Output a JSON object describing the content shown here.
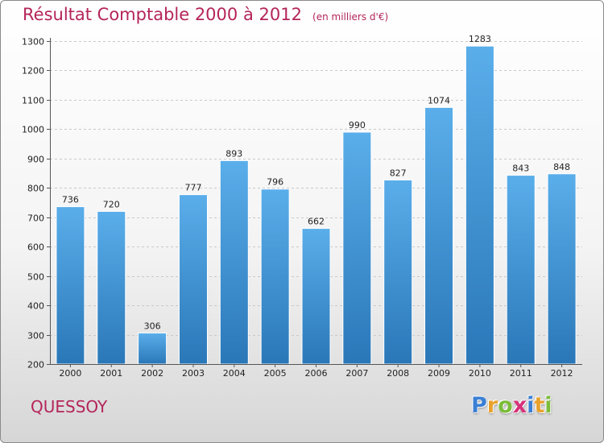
{
  "title": "Résultat Comptable 2000 à 2012",
  "unit": "(en milliers d'€)",
  "town": "QUESSOY",
  "logo": {
    "text": "Proxiti",
    "letters": [
      {
        "ch": "P",
        "color": "#3a7fd4"
      },
      {
        "ch": "r",
        "color": "#e9a12b"
      },
      {
        "ch": "o",
        "color": "#7cbc3a"
      },
      {
        "ch": "x",
        "color": "#d6317a"
      },
      {
        "ch": "i",
        "color": "#3a7fd4"
      },
      {
        "ch": "t",
        "color": "#e9a12b"
      },
      {
        "ch": "i",
        "color": "#7cbc3a"
      }
    ]
  },
  "colors": {
    "bar_top": "#5aaeea",
    "bar_bottom": "#2a77b8",
    "title": "#b4255a"
  },
  "chart_data": {
    "type": "bar",
    "title": "Résultat Comptable 2000 à 2012",
    "ylabel": "en milliers d'€",
    "xlabel": "",
    "categories": [
      "2000",
      "2001",
      "2002",
      "2003",
      "2004",
      "2005",
      "2006",
      "2007",
      "2008",
      "2009",
      "2010",
      "2011",
      "2012"
    ],
    "values": [
      736,
      720,
      306,
      777,
      893,
      796,
      662,
      990,
      827,
      1074,
      1283,
      843,
      848
    ],
    "ylim": [
      200,
      1300
    ],
    "yticks": [
      200,
      300,
      400,
      500,
      600,
      700,
      800,
      900,
      1000,
      1100,
      1200,
      1300
    ],
    "grid": true
  }
}
